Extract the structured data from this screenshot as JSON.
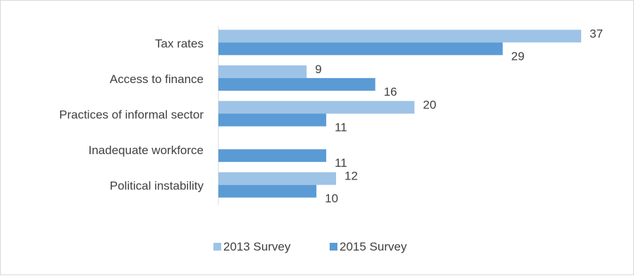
{
  "chart_data": {
    "type": "bar",
    "orientation": "horizontal",
    "title": "",
    "xlabel": "",
    "ylabel": "",
    "categories": [
      "Tax rates",
      "Access to finance",
      "Practices of informal sector",
      "Inadequate workforce",
      "Political instability"
    ],
    "series": [
      {
        "name": "2013 Survey",
        "values": [
          37,
          9,
          20,
          null,
          12
        ],
        "color": "#9dc3e6"
      },
      {
        "name": "2015 Survey",
        "values": [
          29,
          16,
          11,
          11,
          10
        ],
        "color": "#5b9bd5"
      }
    ],
    "xlim": [
      0,
      37
    ],
    "grid": false,
    "data_labels": true,
    "legend_position": "bottom"
  }
}
